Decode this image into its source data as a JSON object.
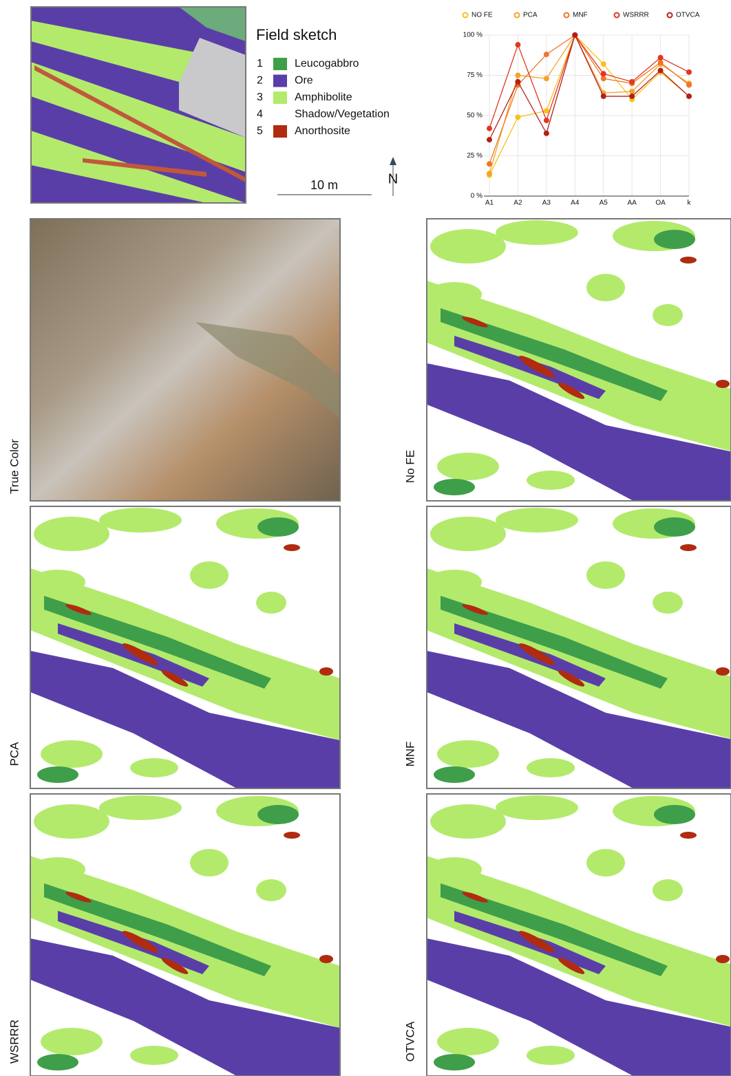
{
  "chart_data": {
    "type": "line",
    "categories": [
      "A1",
      "A2",
      "A3",
      "A4",
      "A5",
      "AA",
      "OA",
      "k"
    ],
    "series": [
      {
        "name": "NO FE",
        "color": "#f7c21b",
        "values": [
          13,
          49,
          53,
          100,
          82,
          60,
          77,
          62
        ]
      },
      {
        "name": "PCA",
        "color": "#f5a228",
        "values": [
          14,
          75,
          73,
          100,
          64,
          65,
          82,
          70
        ]
      },
      {
        "name": "MNF",
        "color": "#ef7527",
        "values": [
          20,
          69,
          88,
          100,
          73,
          70,
          83,
          69
        ]
      },
      {
        "name": "WSRRR",
        "color": "#e0371f",
        "values": [
          42,
          94,
          47,
          100,
          76,
          71,
          86,
          77
        ]
      },
      {
        "name": "OTVCA",
        "color": "#b3201a",
        "values": [
          35,
          71,
          39,
          100,
          62,
          62,
          78,
          62
        ]
      }
    ],
    "ylim": [
      0,
      100
    ],
    "yticks": [
      {
        "value": 0,
        "label": "0 %"
      },
      {
        "value": 25,
        "label": "25 %"
      },
      {
        "value": 50,
        "label": "50 %"
      },
      {
        "value": 75,
        "label": "75 %"
      },
      {
        "value": 100,
        "label": "100 %"
      }
    ],
    "grid": true,
    "legend": "top"
  },
  "sketch": {
    "title": "Field sketch",
    "legend": [
      {
        "number": "1",
        "label": "Leucogabbro",
        "color": "#3f9e4a"
      },
      {
        "number": "2",
        "label": "Ore",
        "color": "#5a3ea8"
      },
      {
        "number": "3",
        "label": "Amphibolite",
        "color": "#b3ea6c"
      },
      {
        "number": "4",
        "label": "Shadow/Vegetation"
      },
      {
        "number": "5",
        "label": "Anorthosite",
        "color": "#b02b10"
      }
    ],
    "scale": "10 m",
    "north": "N"
  },
  "panels": [
    "True Color",
    "No FE",
    "PCA",
    "MNF",
    "WSRRR",
    "OTVCA"
  ]
}
